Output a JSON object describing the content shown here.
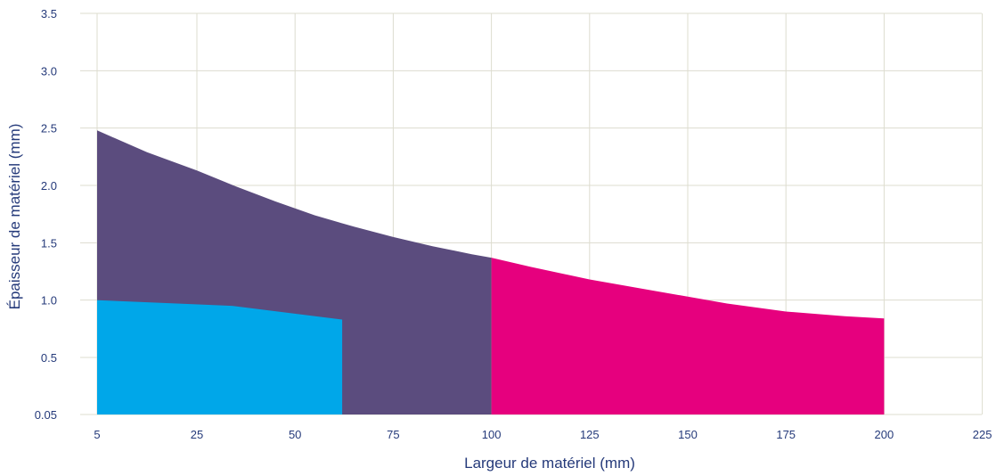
{
  "chart_data": {
    "type": "area",
    "xlabel": "Largeur de matériel (mm)",
    "ylabel": "Épaisseur de matériel (mm)",
    "xlim": [
      5,
      225
    ],
    "ylim": [
      0.05,
      3.5
    ],
    "x_ticks": [
      5,
      25,
      50,
      75,
      100,
      125,
      150,
      175,
      200,
      225
    ],
    "x_tick_labels": [
      "5",
      "25",
      "50",
      "75",
      "100",
      "125",
      "150",
      "175",
      "200",
      "225"
    ],
    "y_ticks": [
      0.05,
      0.5,
      1.0,
      1.5,
      2.0,
      2.5,
      3.0,
      3.5
    ],
    "y_tick_labels": [
      "0.05",
      "0.5",
      "1.0",
      "1.5",
      "2.0",
      "2.5",
      "3.0",
      "3.5"
    ],
    "grid": true,
    "series": [
      {
        "color": "#5b4c7e",
        "x": [
          5,
          15,
          25,
          35,
          45,
          55,
          65,
          75,
          85,
          95,
          100
        ],
        "y": [
          2.48,
          2.29,
          2.13,
          1.99,
          1.86,
          1.74,
          1.64,
          1.55,
          1.47,
          1.4,
          1.37
        ]
      },
      {
        "color": "#e6007e",
        "x": [
          100,
          110,
          125,
          140,
          150,
          160,
          175,
          190,
          200
        ],
        "y": [
          1.37,
          1.29,
          1.18,
          1.09,
          1.03,
          0.97,
          0.9,
          0.86,
          0.84
        ]
      },
      {
        "color": "#00a7e9",
        "x": [
          5,
          34,
          62
        ],
        "y": [
          1.0,
          0.95,
          0.83
        ]
      }
    ]
  }
}
